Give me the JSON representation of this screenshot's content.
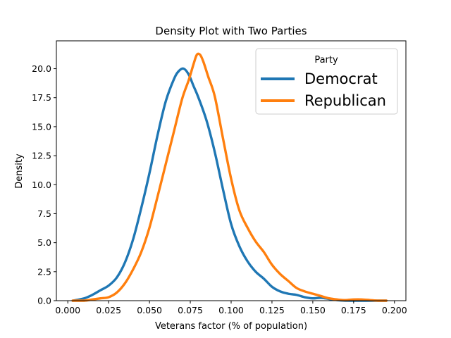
{
  "chart_data": {
    "type": "line",
    "title": "Density Plot with Two Parties",
    "xlabel": "Veterans factor (% of population)",
    "ylabel": "Density",
    "xlim": [
      -0.007,
      0.207
    ],
    "ylim": [
      0,
      22.4
    ],
    "xticks": [
      0.0,
      0.025,
      0.05,
      0.075,
      0.1,
      0.125,
      0.15,
      0.175,
      0.2
    ],
    "xtick_labels": [
      "0.000",
      "0.025",
      "0.050",
      "0.075",
      "0.100",
      "0.125",
      "0.150",
      "0.175",
      "0.200"
    ],
    "yticks": [
      0,
      2.5,
      5,
      7.5,
      10,
      12.5,
      15,
      17.5,
      20
    ],
    "ytick_labels": [
      "0.0",
      "2.5",
      "5.0",
      "7.5",
      "10.0",
      "12.5",
      "15.0",
      "17.5",
      "20.0"
    ],
    "grid": false,
    "legend": {
      "title": "Party",
      "placement": "top-right"
    },
    "series": [
      {
        "name": "Democrat",
        "color": "#1f77b4",
        "x": [
          0.003,
          0.01,
          0.015,
          0.02,
          0.025,
          0.03,
          0.035,
          0.04,
          0.045,
          0.05,
          0.055,
          0.06,
          0.065,
          0.068,
          0.071,
          0.074,
          0.077,
          0.08,
          0.085,
          0.09,
          0.095,
          0.1,
          0.105,
          0.11,
          0.115,
          0.12,
          0.125,
          0.13,
          0.135,
          0.14,
          0.145,
          0.15,
          0.155,
          0.16,
          0.165,
          0.17,
          0.175,
          0.18,
          0.185,
          0.19,
          0.195
        ],
        "y": [
          0.0,
          0.2,
          0.5,
          0.9,
          1.3,
          2.0,
          3.3,
          5.3,
          8.0,
          11.0,
          14.3,
          17.2,
          19.1,
          19.8,
          20.0,
          19.5,
          18.5,
          17.5,
          15.5,
          12.8,
          9.6,
          6.6,
          4.7,
          3.4,
          2.5,
          1.9,
          1.2,
          0.8,
          0.6,
          0.5,
          0.3,
          0.2,
          0.25,
          0.15,
          0.05,
          0.0,
          0.0,
          0.0,
          0.0,
          0.0,
          0.0
        ]
      },
      {
        "name": "Republican",
        "color": "#ff7f0e",
        "x": [
          0.003,
          0.01,
          0.015,
          0.02,
          0.025,
          0.03,
          0.035,
          0.04,
          0.045,
          0.05,
          0.055,
          0.06,
          0.065,
          0.07,
          0.074,
          0.077,
          0.079,
          0.081,
          0.083,
          0.086,
          0.09,
          0.095,
          0.1,
          0.105,
          0.11,
          0.115,
          0.12,
          0.125,
          0.13,
          0.135,
          0.14,
          0.145,
          0.15,
          0.155,
          0.16,
          0.165,
          0.17,
          0.175,
          0.18,
          0.185,
          0.19,
          0.195
        ],
        "y": [
          0.0,
          0.0,
          0.1,
          0.2,
          0.3,
          0.7,
          1.5,
          2.7,
          4.2,
          6.3,
          9.0,
          11.8,
          14.6,
          17.4,
          19.0,
          20.4,
          21.2,
          21.2,
          20.6,
          19.3,
          17.6,
          14.0,
          10.5,
          7.8,
          6.3,
          5.1,
          4.2,
          3.1,
          2.3,
          1.7,
          1.1,
          0.8,
          0.6,
          0.4,
          0.2,
          0.1,
          0.05,
          0.1,
          0.1,
          0.05,
          0.0,
          0.0
        ]
      }
    ]
  }
}
